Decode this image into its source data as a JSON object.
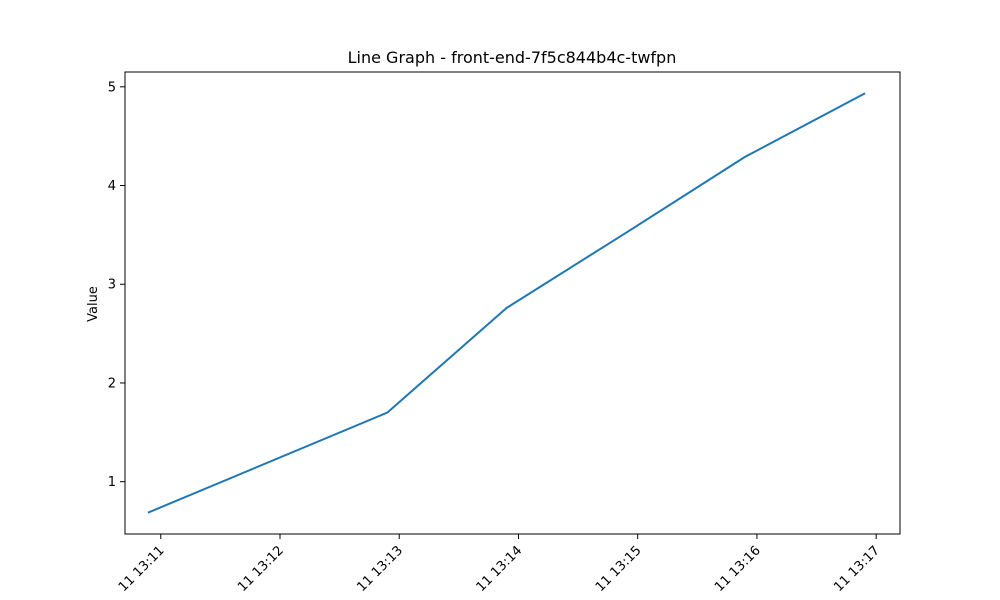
{
  "chart_data": {
    "type": "line",
    "title": "Line Graph - front-end-7f5c844b4c-twfpn",
    "xlabel": "",
    "ylabel": "Value",
    "x_tick_labels": [
      "11 13:11",
      "11 13:12",
      "11 13:13",
      "11 13:14",
      "11 13:15",
      "11 13:16",
      "11 13:17"
    ],
    "y_ticks": [
      1,
      2,
      3,
      4,
      5
    ],
    "x_range_minutes": [
      10.7,
      17.2
    ],
    "ylim": [
      0.47,
      5.15
    ],
    "grid": false,
    "series": [
      {
        "name": "",
        "color": "#1f77b4",
        "points": [
          {
            "minute": 10.9,
            "value": 0.69
          },
          {
            "minute": 12.9,
            "value": 1.7
          },
          {
            "minute": 13.9,
            "value": 2.76
          },
          {
            "minute": 14.9,
            "value": 3.52
          },
          {
            "minute": 15.9,
            "value": 4.29
          },
          {
            "minute": 16.9,
            "value": 4.93
          }
        ]
      }
    ]
  }
}
